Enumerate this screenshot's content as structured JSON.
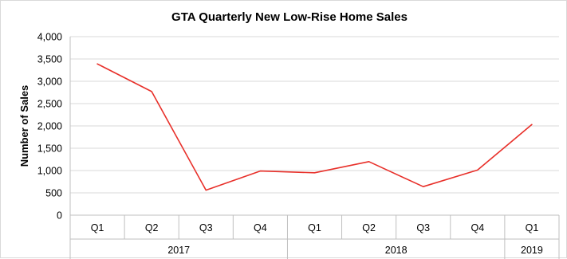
{
  "chart_data": {
    "type": "line",
    "title": "GTA Quarterly New Low-Rise Home Sales",
    "xlabel": "",
    "ylabel": "Number of Sales",
    "ylim": [
      0,
      4000
    ],
    "ytick_step": 500,
    "ytick_labels": [
      "0",
      "500",
      "1,000",
      "1,500",
      "2,000",
      "2,500",
      "3,000",
      "3,500",
      "4,000"
    ],
    "grid": true,
    "legend": "none",
    "categories": [
      "Q1",
      "Q2",
      "Q3",
      "Q4",
      "Q1",
      "Q2",
      "Q3",
      "Q4",
      "Q1"
    ],
    "category_groups": [
      {
        "label": "2017",
        "count": 4
      },
      {
        "label": "2018",
        "count": 4
      },
      {
        "label": "2019",
        "count": 1
      }
    ],
    "series": [
      {
        "color": "#e8302a",
        "values": [
          3390,
          2770,
          560,
          990,
          950,
          1200,
          640,
          1010,
          2030
        ]
      }
    ]
  }
}
